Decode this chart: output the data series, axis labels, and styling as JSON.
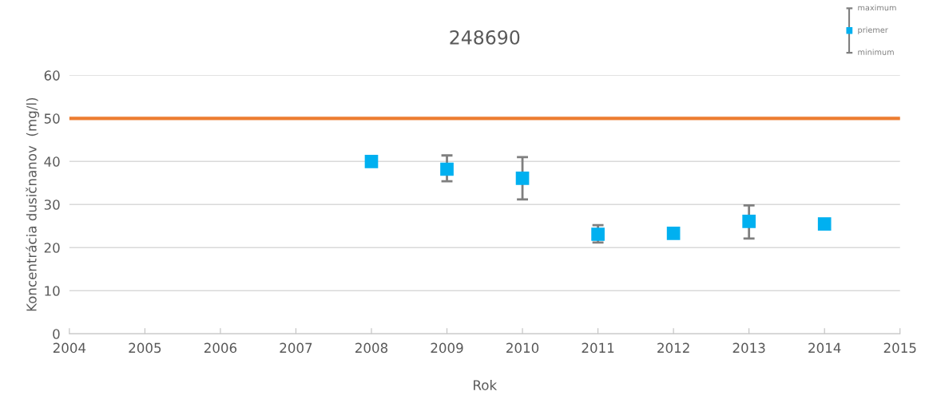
{
  "chart_data": {
    "type": "scatter",
    "title": "248690",
    "xlabel": "Rok",
    "ylabel": "Koncentrácia dusičnanov  (mg/l)",
    "x": [
      2008,
      2009,
      2010,
      2011,
      2012,
      2013,
      2014
    ],
    "series": [
      {
        "name": "priemer",
        "color": "#00b0f0",
        "values": [
          40,
          38.2,
          36.1,
          23.1,
          23.3,
          26.1,
          25.5
        ],
        "errors": [
          null,
          [
            35.4,
            41.4
          ],
          [
            31.2,
            41
          ],
          [
            21.2,
            25.2
          ],
          null,
          [
            22.1,
            29.8
          ],
          null
        ]
      }
    ],
    "ref_lines": [
      {
        "axis": "y",
        "value": 50,
        "label": null,
        "color": "#ed7d31"
      }
    ],
    "annotations": [
      "maximum",
      "minimum"
    ],
    "xlim": [
      2004,
      2015
    ],
    "xticks": [
      2004,
      2005,
      2006,
      2007,
      2008,
      2009,
      2010,
      2011,
      2012,
      2013,
      2014,
      2015
    ],
    "ylim": [
      0,
      60
    ],
    "yticks": [
      0,
      10,
      20,
      30,
      40,
      50,
      60
    ],
    "grid": "y",
    "legend": "top right",
    "marker": "square"
  }
}
